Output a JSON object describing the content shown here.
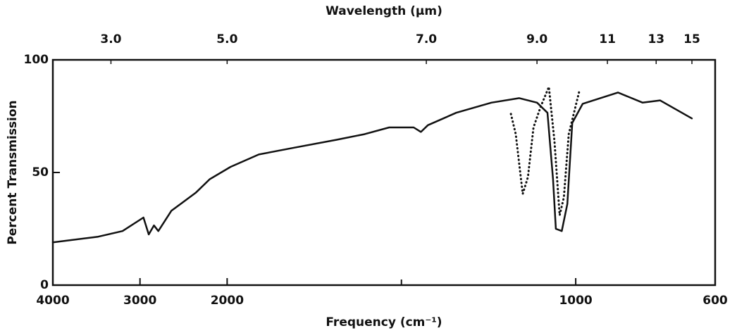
{
  "chart_data": {
    "type": "line",
    "title": "Wavelength (μm)",
    "x_label": "Frequency (cm⁻¹)",
    "y_label": "Percent Transmission",
    "xlim": [
      4000,
      600
    ],
    "xticks": [
      4000,
      3000,
      2000,
      1000,
      600
    ],
    "xminor_ticks": [
      1500
    ],
    "x_scale_change": {
      "at": 2000,
      "factor": 4
    },
    "top_ticks": [
      {
        "value": 3,
        "label": "3.0"
      },
      {
        "value": 5,
        "label": "5.0"
      },
      {
        "value": 7,
        "label": "7.0"
      },
      {
        "value": 9,
        "label": "9.0"
      },
      11,
      13,
      15
    ],
    "ylim": [
      0,
      100
    ],
    "yticks": [
      0,
      50,
      100
    ],
    "series": [
      {
        "style": "solid",
        "color": "#111111",
        "x": [
          4000,
          3480,
          3200,
          2960,
          2900,
          2840,
          2790,
          2640,
          2360,
          2200,
          1990,
          1909,
          1808,
          1687,
          1606,
          1535,
          1465,
          1444,
          1424,
          1343,
          1242,
          1162,
          1111,
          1081,
          1065,
          1057,
          1040,
          1024,
          1010,
          980,
          879,
          808,
          758,
          667
        ],
        "values": [
          19,
          21.5,
          24,
          30,
          22.5,
          26.5,
          24,
          33,
          41,
          47,
          52.5,
          58,
          61,
          64.5,
          67,
          70,
          70,
          68,
          71,
          76.5,
          81,
          83,
          81,
          76.5,
          47,
          25,
          24,
          36,
          72,
          80.5,
          85.5,
          81,
          82,
          74
        ]
      },
      {
        "style": "dotted",
        "color": "#111111",
        "x": [
          1186,
          1172,
          1152,
          1137,
          1121,
          1101,
          1077,
          1061,
          1046,
          1034,
          1020,
          990
        ],
        "values": [
          76,
          67,
          40.5,
          48,
          70,
          79,
          88,
          64,
          31,
          39,
          67,
          86
        ]
      }
    ]
  }
}
